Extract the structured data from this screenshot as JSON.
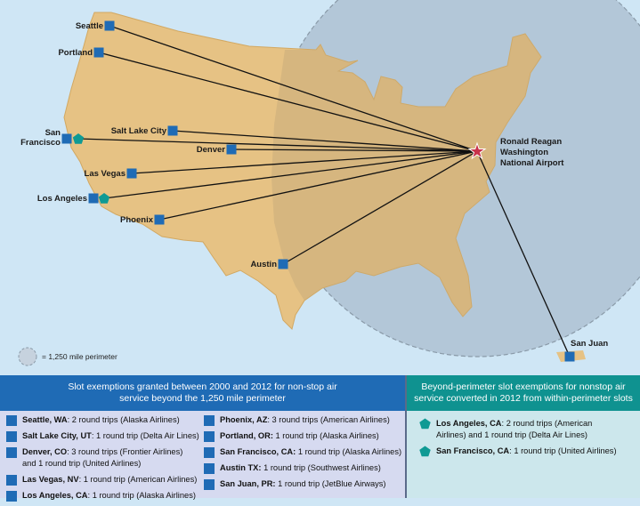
{
  "colors": {
    "land": "#e6c284",
    "ocean": "#cfe6f5",
    "perimeter": "#b0c4d6",
    "square_marker": "#1f6bb5",
    "pentagon_marker": "#0f9a94",
    "airport_star": "#c8324a",
    "left_header": "#1f6bb5",
    "right_header": "#0f9290"
  },
  "map": {
    "airport": {
      "label_lines": [
        "Ronald Reagan",
        "Washington",
        "National Airport"
      ],
      "icon": "star-icon"
    },
    "cities": [
      {
        "id": "seattle",
        "label": "Seattle"
      },
      {
        "id": "portland",
        "label": "Portland"
      },
      {
        "id": "salt-lake-city",
        "label": "Salt Lake City"
      },
      {
        "id": "san-francisco",
        "label_lines": [
          "San",
          "Francisco"
        ]
      },
      {
        "id": "denver",
        "label": "Denver"
      },
      {
        "id": "las-vegas",
        "label": "Las Vegas"
      },
      {
        "id": "los-angeles",
        "label": "Los Angeles"
      },
      {
        "id": "phoenix",
        "label": "Phoenix"
      },
      {
        "id": "austin",
        "label": "Austin"
      },
      {
        "id": "san-juan",
        "label": "San Juan"
      }
    ],
    "legend": {
      "text": "= 1,250 mile perimeter"
    }
  },
  "left_panel": {
    "title_lines": [
      "Slot exemptions granted between 2000 and 2012 for non-stop air",
      "service beyond the 1,250 mile perimeter"
    ],
    "col1": [
      {
        "city": "Seattle, WA",
        "detail": ": 2 round trips (Alaska Airlines)"
      },
      {
        "city": "Salt Lake City, UT",
        "detail": ": 1 round trip (Delta Air Lines)"
      },
      {
        "city": "Denver, CO",
        "detail": ": 3 round trips  (Frontier Airlines) and 1 round trip (United Airlines)"
      },
      {
        "city": "Las Vegas, NV",
        "detail": ": 1 round trip (American Airlines)"
      },
      {
        "city": "Los Angeles, CA",
        "detail": ": 1 round trip (Alaska Airlines)"
      }
    ],
    "col2": [
      {
        "city": "Phoenix, AZ",
        "detail": ": 3 round trips (American Airlines)"
      },
      {
        "city": "Portland, OR:",
        "detail": " 1 round trip (Alaska Airlines)"
      },
      {
        "city": "San Francisco, CA:",
        "detail": " 1 round trip (Alaska Airlines)"
      },
      {
        "city": "Austin TX:",
        "detail": " 1 round trip (Southwest Airlines)"
      },
      {
        "city": "San Juan, PR:",
        "detail": " 1 round trip (JetBlue Airways)"
      }
    ]
  },
  "right_panel": {
    "title_lines": [
      "Beyond-perimeter slot exemptions for nonstop air",
      "service converted in 2012 from within-perimeter slots"
    ],
    "items": [
      {
        "city": "Los Angeles, CA",
        "detail": ": 2 round trips (American Airlines) and 1 round trip (Delta Air Lines)"
      },
      {
        "city": "San Francisco, CA",
        "detail": ": 1 round trip (United Airlines)"
      }
    ]
  }
}
